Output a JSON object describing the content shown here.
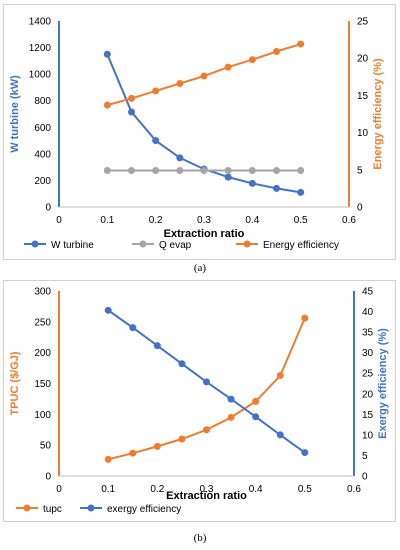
{
  "chart_data": [
    {
      "type": "line",
      "panel_label": "(a)",
      "xlabel": "Extraction ratio",
      "x_ticks": [
        "0",
        "0.1",
        "0.2",
        "0.3",
        "0.4",
        "0.5",
        "0.6"
      ],
      "xlim": [
        0,
        0.6
      ],
      "ylabel_left": "W turbine (kW)",
      "ylim_left": [
        0,
        1400
      ],
      "y_ticks_left": [
        "0",
        "200",
        "400",
        "600",
        "800",
        "1000",
        "1200",
        "1400"
      ],
      "ylabel_right": "Energy efficiency (%)",
      "ylim_right": [
        0,
        25
      ],
      "y_ticks_right": [
        "0",
        "5",
        "10",
        "15",
        "20",
        "25"
      ],
      "legend_position": "bottom",
      "grid": false,
      "series": [
        {
          "name": "W turbine",
          "axis": "left",
          "color": "#4472C4",
          "x": [
            0.1,
            0.15,
            0.2,
            0.25,
            0.3,
            0.35,
            0.4,
            0.45,
            0.5
          ],
          "values": [
            1150,
            715,
            500,
            370,
            285,
            225,
            178,
            140,
            110
          ]
        },
        {
          "name": "Q evap",
          "axis": "left",
          "color": "#A5A5A5",
          "x": [
            0.1,
            0.15,
            0.2,
            0.25,
            0.3,
            0.35,
            0.4,
            0.45,
            0.5
          ],
          "values": [
            275,
            275,
            275,
            275,
            275,
            275,
            275,
            275,
            275
          ]
        },
        {
          "name": "Energy efficiency",
          "axis": "right",
          "color": "#ED7D31",
          "x": [
            0.1,
            0.15,
            0.2,
            0.25,
            0.3,
            0.35,
            0.4,
            0.45,
            0.5
          ],
          "values": [
            13.7,
            14.6,
            15.6,
            16.6,
            17.6,
            18.8,
            19.8,
            20.9,
            21.9
          ]
        }
      ]
    },
    {
      "type": "line",
      "panel_label": "(b)",
      "xlabel": "Extraction ratio",
      "x_ticks": [
        "0",
        "0.1",
        "0.2",
        "0.3",
        "0.4",
        "0.5",
        "0.6"
      ],
      "xlim": [
        0,
        0.6
      ],
      "ylabel_left": "TPUC ($/GJ)",
      "ylim_left": [
        0,
        300
      ],
      "y_ticks_left": [
        "0",
        "50",
        "100",
        "150",
        "200",
        "250",
        "300"
      ],
      "ylabel_right": "Exergy efficiency (%)",
      "ylim_right": [
        0,
        45
      ],
      "y_ticks_right": [
        "0",
        "5",
        "10",
        "15",
        "20",
        "25",
        "30",
        "35",
        "40",
        "45"
      ],
      "legend_position": "bottom",
      "grid": false,
      "series": [
        {
          "name": "tupc",
          "axis": "left",
          "color": "#ED7D31",
          "x": [
            0.1,
            0.15,
            0.2,
            0.25,
            0.3,
            0.35,
            0.4,
            0.45,
            0.5
          ],
          "values": [
            27,
            37,
            48,
            60,
            75,
            95,
            121,
            163,
            256
          ]
        },
        {
          "name": "exergy efficiency",
          "axis": "right",
          "color": "#4472C4",
          "x": [
            0.1,
            0.15,
            0.2,
            0.25,
            0.3,
            0.35,
            0.4,
            0.45,
            0.5
          ],
          "values": [
            40.3,
            36.1,
            31.7,
            27.3,
            22.9,
            18.7,
            14.4,
            10.0,
            5.7
          ]
        }
      ]
    }
  ]
}
